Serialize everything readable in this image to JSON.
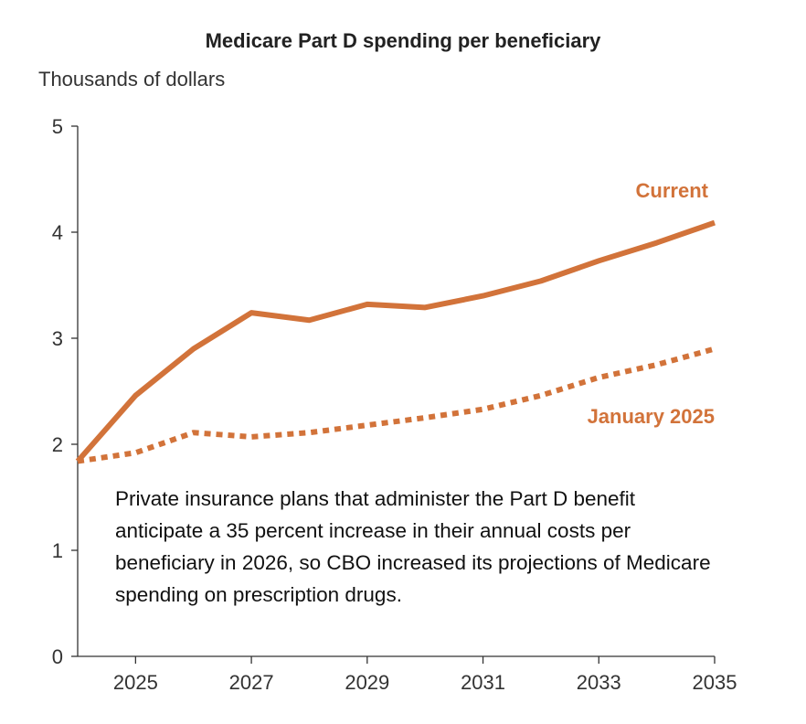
{
  "chart_data": {
    "type": "line",
    "title": "Medicare Part D spending per beneficiary",
    "ylabel": "Thousands of dollars",
    "xlabel": "",
    "x": [
      2024,
      2025,
      2026,
      2027,
      2028,
      2029,
      2030,
      2031,
      2032,
      2033,
      2034,
      2035
    ],
    "xticks": [
      "2025",
      "2027",
      "2029",
      "2031",
      "2033",
      "2035"
    ],
    "xtick_values": [
      2025,
      2027,
      2029,
      2031,
      2033,
      2035
    ],
    "yticks": [
      "0",
      "1",
      "2",
      "3",
      "4",
      "5"
    ],
    "ylim": [
      0,
      5
    ],
    "xlim": [
      2024,
      2035
    ],
    "grid": false,
    "series": [
      {
        "name": "Current",
        "style": "solid",
        "color": "#d2733a",
        "values": [
          1.84,
          2.46,
          2.9,
          3.24,
          3.17,
          3.32,
          3.29,
          3.4,
          3.54,
          3.73,
          3.9,
          4.09
        ]
      },
      {
        "name": "January 2025",
        "style": "dotted",
        "color": "#d2733a",
        "values": [
          1.84,
          1.92,
          2.11,
          2.07,
          2.11,
          2.18,
          2.25,
          2.33,
          2.46,
          2.63,
          2.75,
          2.9
        ]
      }
    ],
    "annotation": "Private insurance plans that administer the Part D benefit anticipate a 35 percent increase in their annual costs per beneficiary in 2026, so CBO increased its projections of Medicare spending on prescription drugs."
  }
}
